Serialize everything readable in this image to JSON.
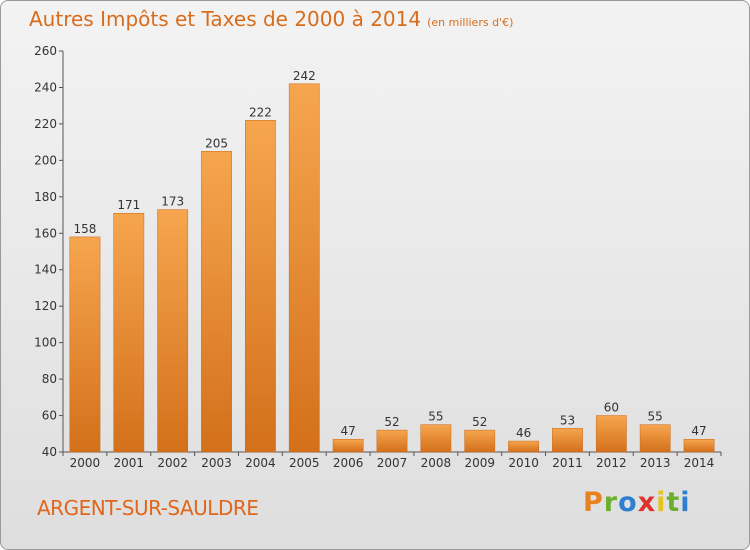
{
  "title": "Autres Impôts et Taxes de 2000 à 2014",
  "unit": "(en milliers d'€)",
  "location": "ARGENT-SUR-SAULDRE",
  "logo": {
    "letters": [
      "P",
      "r",
      "o",
      "x",
      "i",
      "t",
      "i"
    ],
    "colors": [
      "#e8821e",
      "#6ab02e",
      "#2f7fd0",
      "#e0322b",
      "#e8c21e",
      "#6ab02e",
      "#2f7fd0"
    ]
  },
  "chart_data": {
    "type": "bar",
    "categories": [
      "2000",
      "2001",
      "2002",
      "2003",
      "2004",
      "2005",
      "2006",
      "2007",
      "2008",
      "2009",
      "2010",
      "2011",
      "2012",
      "2013",
      "2014"
    ],
    "values": [
      158,
      171,
      173,
      205,
      222,
      242,
      47,
      52,
      55,
      52,
      46,
      53,
      60,
      55,
      47
    ],
    "ylim": [
      40,
      260
    ],
    "yticks": [
      40,
      60,
      80,
      100,
      120,
      140,
      160,
      180,
      200,
      220,
      240,
      260
    ],
    "grid": false,
    "bar_color": "#f0892e"
  }
}
